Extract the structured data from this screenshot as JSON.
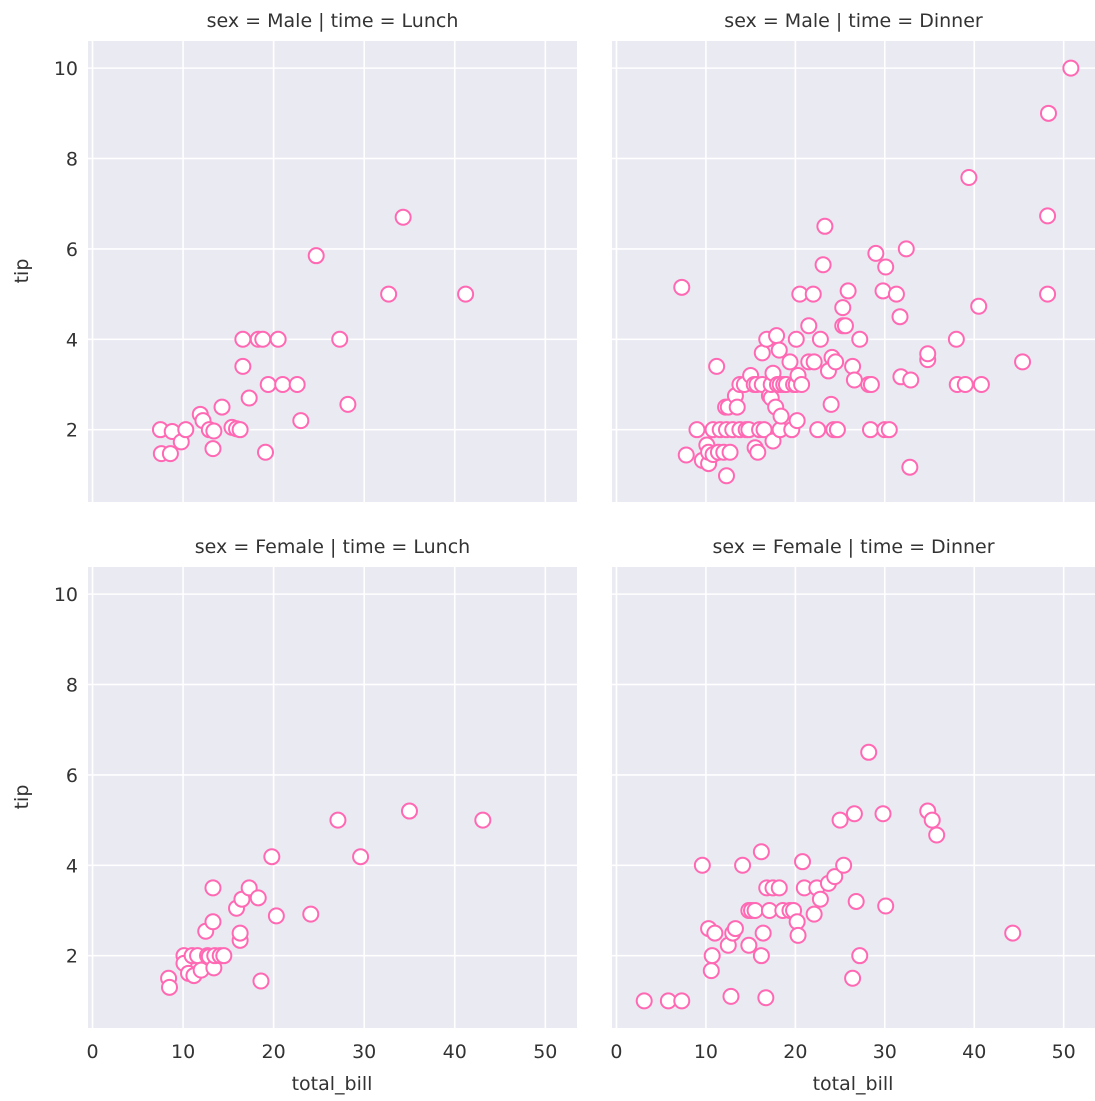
{
  "chart_data": {
    "type": "scatter",
    "xlabel": "total_bill",
    "ylabel": "tip",
    "xlim": [
      -0.5,
      53.5
    ],
    "ylim": [
      0.4,
      10.6
    ],
    "xticks": [
      0,
      10,
      20,
      30,
      40,
      50
    ],
    "yticks": [
      2,
      4,
      6,
      8,
      10
    ],
    "grid": true,
    "marker_color": "#ff69b4",
    "panel_color": "#eaeaf2",
    "panels": [
      {
        "title": "sex = Male | time = Lunch",
        "points": [
          [
            7.5,
            2.0
          ],
          [
            7.6,
            1.47
          ],
          [
            8.6,
            1.47
          ],
          [
            8.8,
            1.96
          ],
          [
            9.8,
            1.73
          ],
          [
            10.3,
            2.0
          ],
          [
            11.9,
            2.34
          ],
          [
            12.2,
            2.2
          ],
          [
            12.9,
            2.0
          ],
          [
            13.3,
            1.58
          ],
          [
            13.4,
            1.97
          ],
          [
            14.3,
            2.5
          ],
          [
            15.4,
            2.05
          ],
          [
            15.9,
            2.02
          ],
          [
            16.3,
            2.0
          ],
          [
            16.6,
            4.0
          ],
          [
            16.6,
            3.4
          ],
          [
            17.3,
            2.7
          ],
          [
            18.3,
            4.0
          ],
          [
            18.8,
            4.0
          ],
          [
            19.1,
            1.5
          ],
          [
            19.4,
            3.0
          ],
          [
            20.5,
            4.0
          ],
          [
            21.0,
            3.0
          ],
          [
            22.6,
            3.0
          ],
          [
            23.0,
            2.2
          ],
          [
            24.7,
            5.85
          ],
          [
            27.3,
            4.0
          ],
          [
            28.2,
            2.56
          ],
          [
            32.7,
            5.0
          ],
          [
            34.3,
            6.7
          ],
          [
            41.2,
            5.0
          ]
        ]
      },
      {
        "title": "sex = Male | time = Dinner",
        "points": [
          [
            7.3,
            5.15
          ],
          [
            7.8,
            1.44
          ],
          [
            9.0,
            2.0
          ],
          [
            9.6,
            1.32
          ],
          [
            10.1,
            1.66
          ],
          [
            10.3,
            1.25
          ],
          [
            10.3,
            1.5
          ],
          [
            10.8,
            2.0
          ],
          [
            10.8,
            1.45
          ],
          [
            11.2,
            3.4
          ],
          [
            11.4,
            1.5
          ],
          [
            11.6,
            2.0
          ],
          [
            12.0,
            1.5
          ],
          [
            12.2,
            2.5
          ],
          [
            12.3,
            0.98
          ],
          [
            12.3,
            2.0
          ],
          [
            12.5,
            2.5
          ],
          [
            12.7,
            1.5
          ],
          [
            13.0,
            2.0
          ],
          [
            13.3,
            2.75
          ],
          [
            13.5,
            2.5
          ],
          [
            13.8,
            2.0
          ],
          [
            13.8,
            3.0
          ],
          [
            14.3,
            3.0
          ],
          [
            14.5,
            2.0
          ],
          [
            14.8,
            2.0
          ],
          [
            15.0,
            3.2
          ],
          [
            15.4,
            3.0
          ],
          [
            15.5,
            1.6
          ],
          [
            15.7,
            3.0
          ],
          [
            15.8,
            1.5
          ],
          [
            16.0,
            2.0
          ],
          [
            16.3,
            3.0
          ],
          [
            16.3,
            3.7
          ],
          [
            16.5,
            2.0
          ],
          [
            16.8,
            4.0
          ],
          [
            17.1,
            2.75
          ],
          [
            17.3,
            2.7
          ],
          [
            17.3,
            3.0
          ],
          [
            17.5,
            1.75
          ],
          [
            17.5,
            3.25
          ],
          [
            17.8,
            2.5
          ],
          [
            17.9,
            4.08
          ],
          [
            18.0,
            3.0
          ],
          [
            18.2,
            3.76
          ],
          [
            18.3,
            2.0
          ],
          [
            18.3,
            3.0
          ],
          [
            18.4,
            2.3
          ],
          [
            18.7,
            3.0
          ],
          [
            19.0,
            3.0
          ],
          [
            19.4,
            3.5
          ],
          [
            19.6,
            2.0
          ],
          [
            19.8,
            3.0
          ],
          [
            20.1,
            3.0
          ],
          [
            20.1,
            4.0
          ],
          [
            20.2,
            2.2
          ],
          [
            20.3,
            3.2
          ],
          [
            20.5,
            5.0
          ],
          [
            20.7,
            3.0
          ],
          [
            21.5,
            4.3
          ],
          [
            21.5,
            3.5
          ],
          [
            22.0,
            5.0
          ],
          [
            22.1,
            3.5
          ],
          [
            22.5,
            2.0
          ],
          [
            22.8,
            4.0
          ],
          [
            23.1,
            5.65
          ],
          [
            23.3,
            6.5
          ],
          [
            23.7,
            3.3
          ],
          [
            24.0,
            2.56
          ],
          [
            24.1,
            3.6
          ],
          [
            24.3,
            2.0
          ],
          [
            24.5,
            3.5
          ],
          [
            24.7,
            2.0
          ],
          [
            25.3,
            4.3
          ],
          [
            25.3,
            4.7
          ],
          [
            25.6,
            4.3
          ],
          [
            25.9,
            5.07
          ],
          [
            26.4,
            3.4
          ],
          [
            26.6,
            3.1
          ],
          [
            27.2,
            4.0
          ],
          [
            28.2,
            3.0
          ],
          [
            28.4,
            2.0
          ],
          [
            28.5,
            3.0
          ],
          [
            29.0,
            5.9
          ],
          [
            29.8,
            5.07
          ],
          [
            30.0,
            2.0
          ],
          [
            30.1,
            5.6
          ],
          [
            30.5,
            2.0
          ],
          [
            31.3,
            5.0
          ],
          [
            31.7,
            4.5
          ],
          [
            31.8,
            3.17
          ],
          [
            32.4,
            6.0
          ],
          [
            32.8,
            1.17
          ],
          [
            32.9,
            3.1
          ],
          [
            34.8,
            3.55
          ],
          [
            34.8,
            3.68
          ],
          [
            38.0,
            4.0
          ],
          [
            38.1,
            3.0
          ],
          [
            39.0,
            3.0
          ],
          [
            39.4,
            7.58
          ],
          [
            40.5,
            4.73
          ],
          [
            40.8,
            3.0
          ],
          [
            45.4,
            3.5
          ],
          [
            48.2,
            5.0
          ],
          [
            48.2,
            6.73
          ],
          [
            48.3,
            9.0
          ],
          [
            50.8,
            10.0
          ]
        ]
      },
      {
        "title": "sex = Female | time = Lunch",
        "points": [
          [
            8.4,
            1.5
          ],
          [
            8.5,
            1.3
          ],
          [
            10.1,
            2.0
          ],
          [
            10.1,
            1.83
          ],
          [
            10.6,
            1.61
          ],
          [
            11.0,
            2.0
          ],
          [
            11.2,
            1.56
          ],
          [
            11.6,
            2.0
          ],
          [
            12.0,
            1.68
          ],
          [
            12.5,
            2.54
          ],
          [
            12.7,
            2.0
          ],
          [
            12.9,
            1.98
          ],
          [
            13.3,
            2.75
          ],
          [
            13.3,
            3.5
          ],
          [
            13.4,
            1.73
          ],
          [
            13.5,
            2.0
          ],
          [
            14.1,
            2.0
          ],
          [
            14.5,
            2.0
          ],
          [
            15.9,
            3.05
          ],
          [
            16.3,
            2.34
          ],
          [
            16.3,
            2.5
          ],
          [
            16.5,
            3.25
          ],
          [
            17.3,
            3.5
          ],
          [
            18.3,
            3.28
          ],
          [
            18.6,
            1.44
          ],
          [
            19.8,
            4.19
          ],
          [
            20.3,
            2.88
          ],
          [
            24.1,
            2.92
          ],
          [
            27.1,
            5.0
          ],
          [
            29.6,
            4.19
          ],
          [
            35.0,
            5.2
          ],
          [
            43.1,
            5.0
          ]
        ]
      },
      {
        "title": "sex = Female | time = Dinner",
        "points": [
          [
            3.1,
            1.0
          ],
          [
            5.8,
            1.0
          ],
          [
            7.3,
            1.0
          ],
          [
            9.6,
            4.0
          ],
          [
            10.3,
            2.6
          ],
          [
            10.6,
            1.67
          ],
          [
            10.7,
            2.0
          ],
          [
            11.0,
            2.5
          ],
          [
            12.5,
            2.23
          ],
          [
            12.8,
            1.1
          ],
          [
            13.0,
            2.5
          ],
          [
            13.3,
            2.6
          ],
          [
            14.1,
            4.0
          ],
          [
            14.8,
            3.0
          ],
          [
            14.8,
            2.23
          ],
          [
            15.1,
            3.0
          ],
          [
            15.5,
            3.0
          ],
          [
            16.2,
            2.0
          ],
          [
            16.2,
            4.3
          ],
          [
            16.4,
            2.5
          ],
          [
            16.7,
            1.07
          ],
          [
            16.8,
            3.5
          ],
          [
            17.1,
            3.0
          ],
          [
            17.5,
            3.5
          ],
          [
            18.2,
            3.5
          ],
          [
            18.6,
            3.0
          ],
          [
            19.4,
            3.0
          ],
          [
            19.8,
            3.0
          ],
          [
            20.2,
            2.75
          ],
          [
            20.3,
            2.45
          ],
          [
            20.8,
            4.08
          ],
          [
            21.0,
            3.5
          ],
          [
            22.1,
            2.92
          ],
          [
            22.4,
            3.5
          ],
          [
            22.8,
            3.25
          ],
          [
            23.7,
            3.6
          ],
          [
            24.4,
            3.75
          ],
          [
            25.0,
            5.0
          ],
          [
            25.4,
            4.0
          ],
          [
            26.4,
            1.5
          ],
          [
            26.6,
            5.14
          ],
          [
            26.8,
            3.2
          ],
          [
            27.2,
            2.0
          ],
          [
            28.2,
            6.5
          ],
          [
            29.8,
            5.14
          ],
          [
            30.1,
            3.1
          ],
          [
            34.8,
            5.2
          ],
          [
            35.3,
            5.0
          ],
          [
            35.8,
            4.67
          ],
          [
            44.3,
            2.5
          ]
        ]
      }
    ]
  }
}
